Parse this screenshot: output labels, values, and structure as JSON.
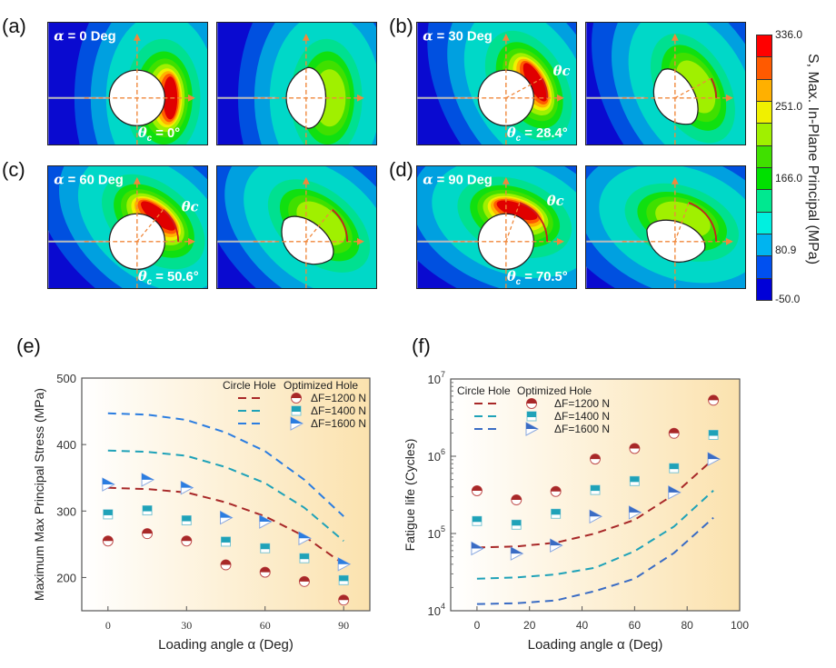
{
  "contour_panels": [
    {
      "label": "(a)",
      "alpha_symbol": "α",
      "alpha_text": " = 0 Deg",
      "theta_symbol": "θ",
      "theta_sub": "c",
      "theta_value": " = 0°",
      "theta_c_deg": 0,
      "arc_label": "",
      "colors": "stress"
    },
    {
      "label": "(b)",
      "alpha_symbol": "α",
      "alpha_text": " = 30 Deg",
      "theta_symbol": "θ",
      "theta_sub": "c",
      "theta_value": " = 28.4°",
      "theta_c_deg": 28.4,
      "arc_label": "θc"
    },
    {
      "label": "(c)",
      "alpha_symbol": "α",
      "alpha_text": " = 60 Deg",
      "theta_symbol": "θ",
      "theta_sub": "c",
      "theta_value": " = 50.6°",
      "theta_c_deg": 50.6,
      "arc_label": "θc"
    },
    {
      "label": "(d)",
      "alpha_symbol": "α",
      "alpha_text": " = 90 Deg",
      "theta_symbol": "θ",
      "theta_sub": "c",
      "theta_value": " = 70.5°",
      "theta_c_deg": 70.5,
      "arc_label": "θc"
    }
  ],
  "colorbar": {
    "title": "S, Max. In-Plane Principal (MPa)",
    "ticks": [
      "336.0",
      "251.0",
      "166.0",
      "80.9",
      "-50.0"
    ],
    "colors": [
      "#ff0000",
      "#ff5a00",
      "#ffb000",
      "#f0f000",
      "#a0f000",
      "#40e000",
      "#00e000",
      "#00e890",
      "#00f0e0",
      "#00b4f0",
      "#0050f0",
      "#0000d8"
    ]
  },
  "chart_data": [
    {
      "panel_label": "(e)",
      "type": "scatter",
      "xlabel": "Loading angle α (Deg)",
      "ylabel": "Maximum Max Principal Stress (MPa)",
      "xlim": [
        -10,
        100
      ],
      "ylim": [
        150,
        500
      ],
      "xticks": [
        0,
        30,
        60,
        90
      ],
      "yticks": [
        200,
        300,
        400,
        500
      ],
      "yscale": "linear",
      "legend": {
        "circle_header": "Circle Hole",
        "optimized_header": "Optimized Hole",
        "placement": "top-right"
      },
      "x": [
        0,
        15,
        30,
        45,
        60,
        75,
        90
      ],
      "series": [
        {
          "name": "ΔF=1200 N",
          "color": "#a82828",
          "marker": "half-circle",
          "circle_hole": [
            335,
            333,
            328,
            313,
            292,
            262,
            220
          ],
          "optimized_hole": [
            255,
            266,
            255,
            219,
            208,
            194,
            166
          ]
        },
        {
          "name": "ΔF=1400 N",
          "color": "#1fa2b8",
          "marker": "square",
          "circle_hole": [
            391,
            389,
            383,
            366,
            342,
            305,
            255
          ],
          "optimized_hole": [
            295,
            301,
            286,
            254,
            244,
            229,
            196
          ]
        },
        {
          "name": "ΔF=1600 N",
          "color": "#2b7de0",
          "marker": "triangle",
          "circle_hole": [
            447,
            445,
            437,
            418,
            390,
            347,
            292
          ],
          "optimized_hole": [
            340,
            347,
            335,
            290,
            284,
            259,
            220
          ]
        }
      ]
    },
    {
      "panel_label": "(f)",
      "type": "scatter",
      "xlabel": "Loading angle α (Deg)",
      "ylabel": "Fatigue life (Cycles)",
      "xlim": [
        -10,
        100
      ],
      "ylim": [
        10000,
        10000000
      ],
      "xticks": [
        0,
        20,
        40,
        60,
        80,
        100
      ],
      "ytick_base": "10",
      "ytick_exponents": [
        4,
        5,
        6,
        7
      ],
      "yscale": "log",
      "legend": {
        "circle_header": "Circle Hole",
        "optimized_header": "Optimized Hole",
        "placement": "top-left"
      },
      "x": [
        0,
        15,
        30,
        45,
        60,
        75,
        90
      ],
      "series": [
        {
          "name": "ΔF=1200 N",
          "color": "#a82828",
          "marker": "half-circle",
          "circle_hole": [
            66000,
            68000,
            76000,
            100000,
            150000,
            320000,
            920000
          ],
          "optimized_hole": [
            357000,
            272000,
            350000,
            920000,
            1260000,
            1980000,
            5300000
          ]
        },
        {
          "name": "ΔF=1400 N",
          "color": "#1fa2b8",
          "marker": "square",
          "circle_hole": [
            26000,
            27000,
            29500,
            36000,
            59000,
            123000,
            360000
          ],
          "optimized_hole": [
            145000,
            130000,
            180000,
            366000,
            477000,
            700000,
            1890000
          ]
        },
        {
          "name": "ΔF=1600 N",
          "color": "#3a6cc4",
          "marker": "triangle",
          "circle_hole": [
            12200,
            12500,
            13600,
            18000,
            26000,
            56000,
            160000
          ],
          "optimized_hole": [
            64000,
            55000,
            70000,
            166000,
            187000,
            340000,
            920000
          ]
        }
      ]
    }
  ]
}
